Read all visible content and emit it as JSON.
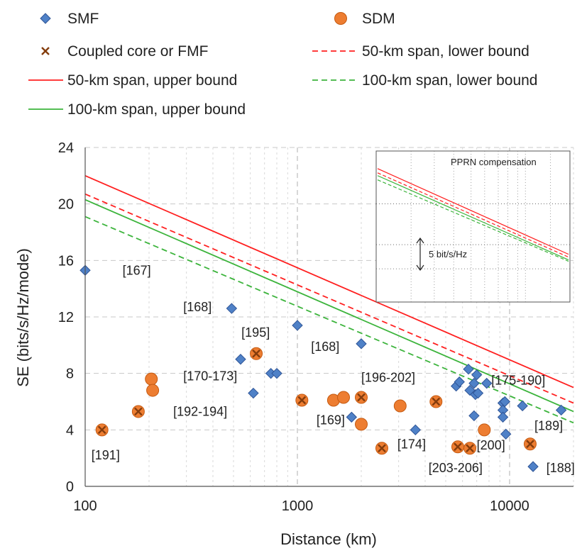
{
  "colors": {
    "smf": "#4f81c7",
    "smf_edge": "#2f5597",
    "sdm": "#ed7d31",
    "sdm_edge": "#c55a11",
    "coupled_mark": "#843c0c",
    "red": "#ff2020",
    "green": "#3cb43c",
    "grid": "#c8c8c8"
  },
  "legend": [
    {
      "key": "smf",
      "label": "SMF",
      "symbol": "diamond"
    },
    {
      "key": "sdm",
      "label": "SDM",
      "symbol": "circle"
    },
    {
      "key": "coupled",
      "label": "Coupled core or FMF",
      "symbol": "x"
    },
    {
      "key": "red_lower",
      "label": "50-km span, lower bound",
      "symbol": "dash-red"
    },
    {
      "key": "red_upper",
      "label": "50-km span, upper bound",
      "symbol": "solid-red"
    },
    {
      "key": "green_lower",
      "label": "100-km span, lower bound",
      "symbol": "dash-green"
    },
    {
      "key": "green_upper",
      "label": "100-km span, upper bound",
      "symbol": "solid-green"
    }
  ],
  "chart_data": {
    "type": "scatter",
    "xlabel": "Distance (km)",
    "ylabel": "SE (bits/s/Hz/mode)",
    "xscale": "log",
    "xlim": [
      100,
      20000
    ],
    "ylim": [
      0,
      24
    ],
    "xticks": [
      100,
      1000,
      10000
    ],
    "xtick_labels": [
      "100",
      "1000",
      "10000"
    ],
    "yticks": [
      0,
      4,
      8,
      12,
      16,
      20,
      24
    ],
    "ytick_labels": [
      "0",
      "4",
      "8",
      "12",
      "16",
      "20",
      "24"
    ],
    "grid": true,
    "legend_position": "top",
    "lines": [
      {
        "name": "50-km span, upper bound",
        "color": "red",
        "style": "solid",
        "x": [
          100,
          20000
        ],
        "y": [
          22.0,
          7.0
        ]
      },
      {
        "name": "50-km span, lower bound",
        "color": "red",
        "style": "dashed",
        "x": [
          100,
          20000
        ],
        "y": [
          20.7,
          5.9
        ]
      },
      {
        "name": "100-km span, upper bound",
        "color": "green",
        "style": "solid",
        "x": [
          100,
          20000
        ],
        "y": [
          20.3,
          5.3
        ]
      },
      {
        "name": "100-km span, lower bound",
        "color": "green",
        "style": "dashed",
        "x": [
          100,
          20000
        ],
        "y": [
          19.1,
          4.5
        ]
      }
    ],
    "smf_points": [
      {
        "x": 100,
        "y": 15.3
      },
      {
        "x": 490,
        "y": 12.6
      },
      {
        "x": 540,
        "y": 9.0
      },
      {
        "x": 620,
        "y": 6.6
      },
      {
        "x": 750,
        "y": 8.0
      },
      {
        "x": 800,
        "y": 8.0
      },
      {
        "x": 1000,
        "y": 11.4
      },
      {
        "x": 2000,
        "y": 10.1
      },
      {
        "x": 1800,
        "y": 4.9
      },
      {
        "x": 3600,
        "y": 4.0
      },
      {
        "x": 5600,
        "y": 7.1
      },
      {
        "x": 5800,
        "y": 7.4
      },
      {
        "x": 6400,
        "y": 8.3
      },
      {
        "x": 6500,
        "y": 6.8
      },
      {
        "x": 6800,
        "y": 7.3
      },
      {
        "x": 6900,
        "y": 6.5
      },
      {
        "x": 7000,
        "y": 7.9
      },
      {
        "x": 6800,
        "y": 5.0
      },
      {
        "x": 7100,
        "y": 6.6
      },
      {
        "x": 7800,
        "y": 7.3
      },
      {
        "x": 9300,
        "y": 5.9
      },
      {
        "x": 9300,
        "y": 5.4
      },
      {
        "x": 9300,
        "y": 4.9
      },
      {
        "x": 9500,
        "y": 6.0
      },
      {
        "x": 9600,
        "y": 3.7
      },
      {
        "x": 11500,
        "y": 5.7
      },
      {
        "x": 12900,
        "y": 1.4
      },
      {
        "x": 17500,
        "y": 5.4
      }
    ],
    "sdm_points": [
      {
        "x": 120,
        "y": 4.0,
        "coupled": true
      },
      {
        "x": 178,
        "y": 5.3,
        "coupled": true
      },
      {
        "x": 205,
        "y": 7.6,
        "coupled": false
      },
      {
        "x": 208,
        "y": 6.8,
        "coupled": false
      },
      {
        "x": 640,
        "y": 9.4,
        "coupled": true
      },
      {
        "x": 1050,
        "y": 6.1,
        "coupled": true
      },
      {
        "x": 1480,
        "y": 6.1,
        "coupled": false
      },
      {
        "x": 1650,
        "y": 6.3,
        "coupled": false
      },
      {
        "x": 2000,
        "y": 6.3,
        "coupled": true
      },
      {
        "x": 2000,
        "y": 4.4,
        "coupled": false
      },
      {
        "x": 2500,
        "y": 2.7,
        "coupled": true
      },
      {
        "x": 3050,
        "y": 5.7,
        "coupled": false
      },
      {
        "x": 4500,
        "y": 6.0,
        "coupled": true
      },
      {
        "x": 5700,
        "y": 2.8,
        "coupled": true
      },
      {
        "x": 6500,
        "y": 2.7,
        "coupled": true
      },
      {
        "x": 7600,
        "y": 4.0,
        "coupled": false
      },
      {
        "x": 12500,
        "y": 3.0,
        "coupled": true
      }
    ],
    "annotations": [
      {
        "text": "[167]",
        "x": 150,
        "y": 15.3
      },
      {
        "text": "[168]",
        "x": 290,
        "y": 12.7
      },
      {
        "text": "[195]",
        "x": 545,
        "y": 10.9
      },
      {
        "text": "[168]",
        "x": 1160,
        "y": 9.9
      },
      {
        "text": "[170-173]",
        "x": 290,
        "y": 7.8
      },
      {
        "text": "[196-202]",
        "x": 2000,
        "y": 7.7
      },
      {
        "text": "[175-190]",
        "x": 8200,
        "y": 7.5
      },
      {
        "text": "[192-194]",
        "x": 260,
        "y": 5.3
      },
      {
        "text": "[169]",
        "x": 1230,
        "y": 4.7
      },
      {
        "text": "[174]",
        "x": 2960,
        "y": 3.0
      },
      {
        "text": "[189]",
        "x": 13100,
        "y": 4.3
      },
      {
        "text": "[191]",
        "x": 107,
        "y": 2.2
      },
      {
        "text": "[200]",
        "x": 7000,
        "y": 2.9
      },
      {
        "text": "[203-206]",
        "x": 4150,
        "y": 1.3
      },
      {
        "text": "[188]",
        "x": 14900,
        "y": 1.3
      }
    ],
    "inset": {
      "title": "PPRN compensation",
      "scale_label": "5 bit/s/Hz",
      "lines": [
        {
          "color": "red",
          "style": "solid",
          "y0": 0.92,
          "y1": 0.31
        },
        {
          "color": "red",
          "style": "dashed",
          "y0": 0.89,
          "y1": 0.29
        },
        {
          "color": "green",
          "style": "solid",
          "y0": 0.87,
          "y1": 0.27
        },
        {
          "color": "green",
          "style": "dashed",
          "y0": 0.84,
          "y1": 0.26
        }
      ]
    }
  }
}
